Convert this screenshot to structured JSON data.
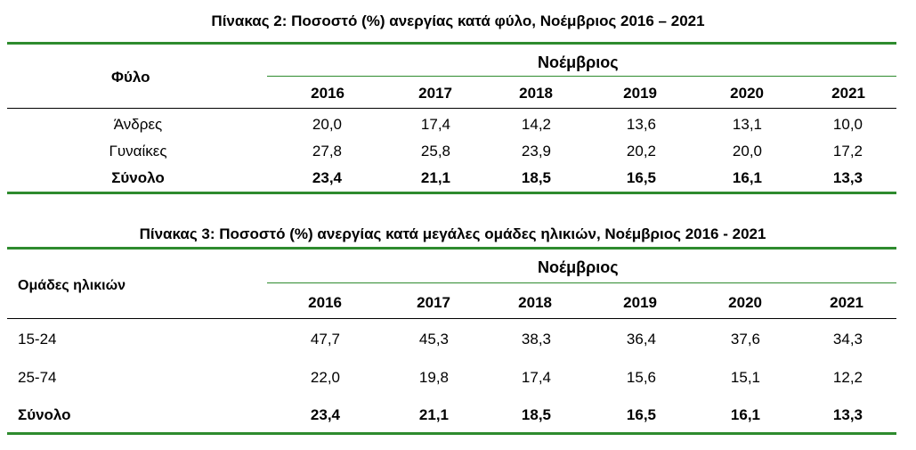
{
  "table2": {
    "title": "Πίνακας 2: Ποσοστό (%) ανεργίας κατά φύλο, Νοέμβριος 2016 – 2021",
    "row_header": "Φύλο",
    "group_header": "Νοέμβριος",
    "years": [
      "2016",
      "2017",
      "2018",
      "2019",
      "2020",
      "2021"
    ],
    "rows": [
      {
        "label": "Άνδρες",
        "values": [
          "20,0",
          "17,4",
          "14,2",
          "13,6",
          "13,1",
          "10,0"
        ]
      },
      {
        "label": "Γυναίκες",
        "values": [
          "27,8",
          "25,8",
          "23,9",
          "20,2",
          "20,0",
          "17,2"
        ]
      },
      {
        "label": "Σύνολο",
        "values": [
          "23,4",
          "21,1",
          "18,5",
          "16,5",
          "16,1",
          "13,3"
        ]
      }
    ]
  },
  "table3": {
    "title": "Πίνακας 3: Ποσοστό (%) ανεργίας κατά μεγάλες ομάδες ηλικιών, Νοέμβριος 2016 - 2021",
    "row_header": "Ομάδες ηλικιών",
    "group_header": "Νοέμβριος",
    "years": [
      "2016",
      "2017",
      "2018",
      "2019",
      "2020",
      "2021"
    ],
    "rows": [
      {
        "label": "15-24",
        "values": [
          "47,7",
          "45,3",
          "38,3",
          "36,4",
          "37,6",
          "34,3"
        ]
      },
      {
        "label": "25-74",
        "values": [
          "22,0",
          "19,8",
          "17,4",
          "15,6",
          "15,1",
          "12,2"
        ]
      },
      {
        "label": "Σύνολο",
        "values": [
          "23,4",
          "21,1",
          "18,5",
          "16,5",
          "16,1",
          "13,3"
        ]
      }
    ]
  },
  "colors": {
    "rule": "#2e8b2e"
  }
}
